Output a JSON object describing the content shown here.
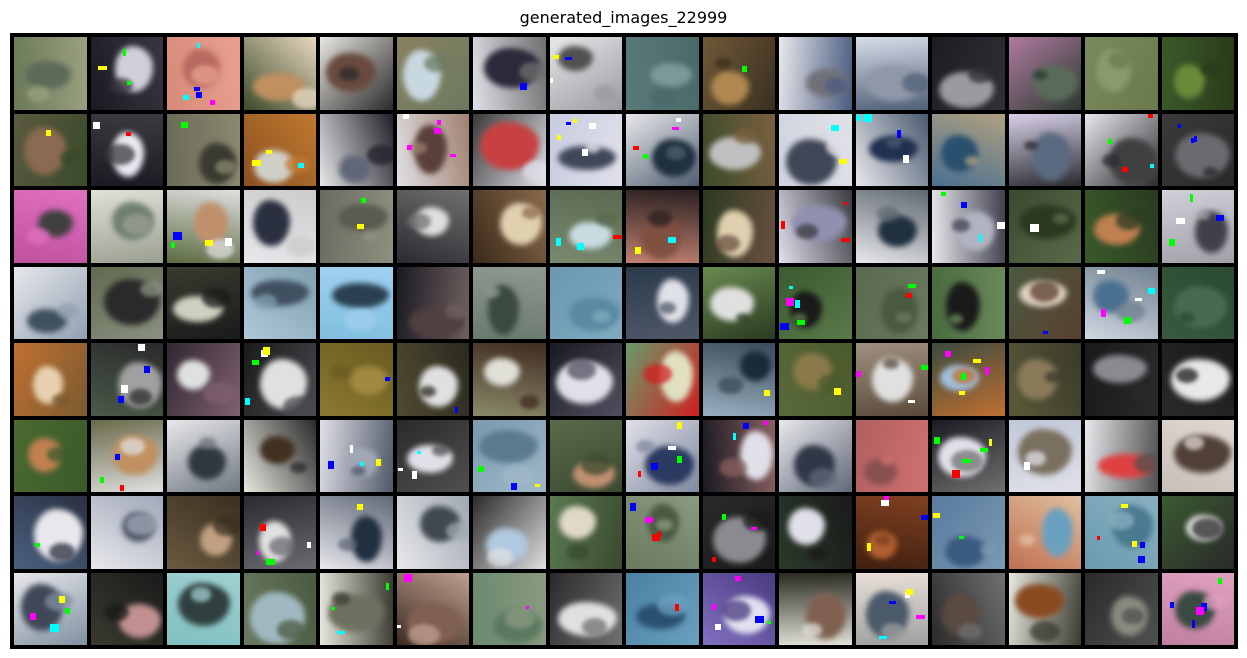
{
  "title": "generated_images_22999",
  "grid": {
    "rows": 8,
    "cols": 16
  },
  "tiles": [
    [
      "#6b7a5a",
      "#5d6a58",
      "#9aa080"
    ],
    [
      "#1a1a22",
      "#cfd0d8",
      "#3a3640"
    ],
    [
      "#d88a78",
      "#b86a60",
      "#e8a090"
    ],
    [
      "#3a4a2a",
      "#c09060",
      "#e8d8c0"
    ],
    [
      "#e8e6e0",
      "#6a4a40",
      "#2a2a2a"
    ],
    [
      "#8a8060",
      "#c8d8e0",
      "#6a7a60"
    ],
    [
      "#e0e0e8",
      "#2a2a3a",
      "#707070"
    ],
    [
      "#e8e8ea",
      "#505050",
      "#9a9aa0"
    ],
    [
      "#5a7a7a",
      "#7a9a9a",
      "#4a6a6a"
    ],
    [
      "#705838",
      "#b08850",
      "#3a3020"
    ],
    [
      "#e8e8ec",
      "#707078",
      "#4a5a80"
    ],
    [
      "#d8dce8",
      "#9098a8",
      "#506078"
    ],
    [
      "#1c1c22",
      "#9a9aa0",
      "#303038"
    ],
    [
      "#b07aa0",
      "#5a6a5a",
      "#2a3a30"
    ],
    [
      "#7a8a5a",
      "#8a9a6a",
      "#6a7a4a"
    ],
    [
      "#3a5a2a",
      "#6a8a3a",
      "#2a3a1a"
    ],
    [
      "#5a5a40",
      "#8a6a50",
      "#3a4a2a"
    ],
    [
      "#1a1a22",
      "#e8e8f0",
      "#3a3a40"
    ],
    [
      "#6a6a58",
      "#3a3a30",
      "#8a8a70"
    ],
    [
      "#8a5020",
      "#d0d0c8",
      "#c07a30"
    ],
    [
      "#e8e8ea",
      "#606878",
      "#202028"
    ],
    [
      "#e0e0e4",
      "#5a4038",
      "#a08070"
    ],
    [
      "#3a3a3a",
      "#c84040",
      "#e0e0e8"
    ],
    [
      "#c8cce0",
      "#404858",
      "#e0e0ea"
    ],
    [
      "#e8e8ec",
      "#203040",
      "#506070"
    ],
    [
      "#3a4a2a",
      "#c0c0c0",
      "#7a6040"
    ],
    [
      "#d0d4e0",
      "#404858",
      "#e0e0e8"
    ],
    [
      "#e8e8ec",
      "#203050",
      "#4a5a70"
    ],
    [
      "#4a7090",
      "#2a5070",
      "#b0a080"
    ],
    [
      "#d8d0e8",
      "#5a6a80",
      "#2a2a30"
    ],
    [
      "#e8e8ec",
      "#404040",
      "#2a2a30"
    ],
    [
      "#3a3a3a",
      "#6a6a70",
      "#2a2a2a"
    ],
    [
      "#c050a0",
      "#404040",
      "#e070c0"
    ],
    [
      "#e0e0d8",
      "#708070",
      "#9aa090"
    ],
    [
      "#5a6a40",
      "#c0906a",
      "#e0e0e0"
    ],
    [
      "#e8e8ec",
      "#2a3040",
      "#cccccc"
    ],
    [
      "#6a6a60",
      "#5a5a50",
      "#909080"
    ],
    [
      "#2a2a30",
      "#e0e0e0",
      "#707070"
    ],
    [
      "#3a2a1a",
      "#e0d0b0",
      "#8a6a4a"
    ],
    [
      "#7a8a70",
      "#c8dce0",
      "#5a6a50"
    ],
    [
      "#c08070",
      "#805040",
      "#2a2020"
    ],
    [
      "#2a3a20",
      "#e0d0b0",
      "#6a5040"
    ],
    [
      "#e0e0ee",
      "#9090b0",
      "#3a3a40"
    ],
    [
      "#e8e8ec",
      "#203040",
      "#606870"
    ],
    [
      "#e8e8ec",
      "#b0b4c0",
      "#404050"
    ],
    [
      "#3a4a30",
      "#2a3a20",
      "#5a6a4a"
    ],
    [
      "#3a5a2a",
      "#c08050",
      "#2a3a20"
    ],
    [
      "#d0d0d8",
      "#404048",
      "#a0a0a8"
    ],
    [
      "#e8e8ec",
      "#405060",
      "#90a0b0"
    ],
    [
      "#606a50",
      "#2a2a2a",
      "#8a9080"
    ],
    [
      "#3a3a30",
      "#d0d0c0",
      "#1a1a1a"
    ],
    [
      "#b0c8d8",
      "#405060",
      "#80a0b0"
    ],
    [
      "#80c0e0",
      "#2a4050",
      "#a0d0f0"
    ],
    [
      "#1a1a22",
      "#504040",
      "#706060"
    ],
    [
      "#6a7a70",
      "#3a4a40",
      "#909890"
    ],
    [
      "#6a98b0",
      "#5a8aa0",
      "#80aac0"
    ],
    [
      "#2a3a4a",
      "#e0e0e8",
      "#505868"
    ],
    [
      "#6a8a50",
      "#e0e0e0",
      "#2a3a20"
    ],
    [
      "#3a5a30",
      "#1a1a1a",
      "#5a7a4a"
    ],
    [
      "#5a6a50",
      "#4a5a40",
      "#6a7a60"
    ],
    [
      "#4a6a40",
      "#1a1a1a",
      "#6a8a5a"
    ],
    [
      "#4a5a40",
      "#e0d0c0",
      "#5a4030"
    ],
    [
      "#d0d8e0",
      "#4a7090",
      "#708090"
    ],
    [
      "#3a5a40",
      "#4a6a50",
      "#2a4a30"
    ],
    [
      "#c07030",
      "#e8d0b0",
      "#7a5a30"
    ],
    [
      "#4a5a4a",
      "#a0a0a0",
      "#2a2a2a"
    ],
    [
      "#302830",
      "#e0e0e0",
      "#806070"
    ],
    [
      "#1a1a1a",
      "#e0e0e0",
      "#4a4a50"
    ],
    [
      "#8a7a30",
      "#a08a40",
      "#6a5a20"
    ],
    [
      "#504a30",
      "#e0e0e0",
      "#2a2a20"
    ],
    [
      "#8a8a6a",
      "#e0e0d8",
      "#402a20"
    ],
    [
      "#1a1a22",
      "#e0e0e8",
      "#505060"
    ],
    [
      "#6a9a6a",
      "#e0e0c0",
      "#d02020"
    ],
    [
      "#9ab0c0",
      "#1a2a3a",
      "#3a4a5a"
    ],
    [
      "#5a6a3a",
      "#8a7a4a",
      "#4a5a2a"
    ],
    [
      "#a09080",
      "#e0e0e0",
      "#5a4a3a"
    ],
    [
      "#3a4a40",
      "#a0c0e0",
      "#c07030"
    ],
    [
      "#5a5a3a",
      "#8a7a5a",
      "#3a3a2a"
    ],
    [
      "#1a1a1a",
      "#8a8a90",
      "#2a2a2a"
    ],
    [
      "#2a2a2a",
      "#e8e8e8",
      "#1a1a1a"
    ],
    [
      "#4a6a30",
      "#c08050",
      "#3a5a2a"
    ],
    [
      "#6a6a4a",
      "#c09060",
      "#e0e0e0"
    ],
    [
      "#e8e8ec",
      "#303840",
      "#707880"
    ],
    [
      "#e8e8e0",
      "#403020",
      "#2a2a2a"
    ],
    [
      "#e0e0e8",
      "#a0a8b8",
      "#505868"
    ],
    [
      "#2a2a2a",
      "#e0e0e8",
      "#505050"
    ],
    [
      "#7a9ab0",
      "#5a7a90",
      "#a0b8c8"
    ],
    [
      "#5a6a4a",
      "#c09070",
      "#3a4a30"
    ],
    [
      "#e0e0e8",
      "#2a3a60",
      "#808aa0"
    ],
    [
      "#1a1a22",
      "#e0e0e8",
      "#8a6060"
    ],
    [
      "#e8e8ec",
      "#303848",
      "#606878"
    ],
    [
      "#b06060",
      "#8a5050",
      "#d07070"
    ],
    [
      "#1a1a22",
      "#e0e0e8",
      "#707070"
    ],
    [
      "#c0c8d8",
      "#7a7060",
      "#e0e0e8"
    ],
    [
      "#e8e8ec",
      "#e04040",
      "#505050"
    ],
    [
      "#c8c0b8",
      "#504038",
      "#e0d8d0"
    ],
    [
      "#4a6080",
      "#e8e8ec",
      "#2a3040"
    ],
    [
      "#e8e8ec",
      "#505a68",
      "#a0a8b8"
    ],
    [
      "#6a5a40",
      "#c0a080",
      "#3a3020"
    ],
    [
      "#2a2a30",
      "#e0e0e0",
      "#6a6a70"
    ],
    [
      "#e8e8ec",
      "#203040",
      "#606878"
    ],
    [
      "#e8e8ec",
      "#404850",
      "#a0a8b0"
    ],
    [
      "#2a2a2a",
      "#b0c8e0",
      "#e0e0e0"
    ],
    [
      "#5a7a50",
      "#e0d8c8",
      "#3a4a30"
    ],
    [
      "#6a7a60",
      "#4a5a40",
      "#8a9a80"
    ],
    [
      "#2a2a2a",
      "#8a8a90",
      "#1a1a1a"
    ],
    [
      "#2a3a2a",
      "#e0e0e8",
      "#1a1a1a"
    ],
    [
      "#402010",
      "#b06030",
      "#804020"
    ],
    [
      "#5a7aa0",
      "#3a5a80",
      "#7a9ab0"
    ],
    [
      "#c07050",
      "#6aa0c0",
      "#e0c0a0"
    ],
    [
      "#6a9ab0",
      "#4a7a90",
      "#8ab0c0"
    ],
    [
      "#3a5a30",
      "#e0e0e0",
      "#2a2a2a"
    ],
    [
      "#e8e8ec",
      "#404858",
      "#8090a0"
    ],
    [
      "#3a3a30",
      "#c09090",
      "#1a1a1a"
    ],
    [
      "#80c0c0",
      "#304040",
      "#a0d0d0"
    ],
    [
      "#6a7a60",
      "#a0b8c0",
      "#4a5a40"
    ],
    [
      "#e8e8e0",
      "#707060",
      "#3a3a30"
    ],
    [
      "#3a2a20",
      "#806050",
      "#c0a090"
    ],
    [
      "#6a8a70",
      "#5a7a60",
      "#8a9a80"
    ],
    [
      "#2a2a2a",
      "#e0e0e0",
      "#707070"
    ],
    [
      "#4a80a0",
      "#2a5070",
      "#6aa0c0"
    ],
    [
      "#8070c0",
      "#e0e0f0",
      "#4a3a80"
    ],
    [
      "#2a2a20",
      "#806050",
      "#e0e0d8"
    ],
    [
      "#e8e0d8",
      "#4a5a6a",
      "#a0a0a0"
    ],
    [
      "#2a2a2a",
      "#5a4a40",
      "#707070"
    ],
    [
      "#e8e8e0",
      "#8a4a20",
      "#3a3a30"
    ],
    [
      "#2a2a2a",
      "#8a8a80",
      "#505050"
    ],
    [
      "#c080a0",
      "#3a4a40",
      "#e0a0c0"
    ]
  ]
}
